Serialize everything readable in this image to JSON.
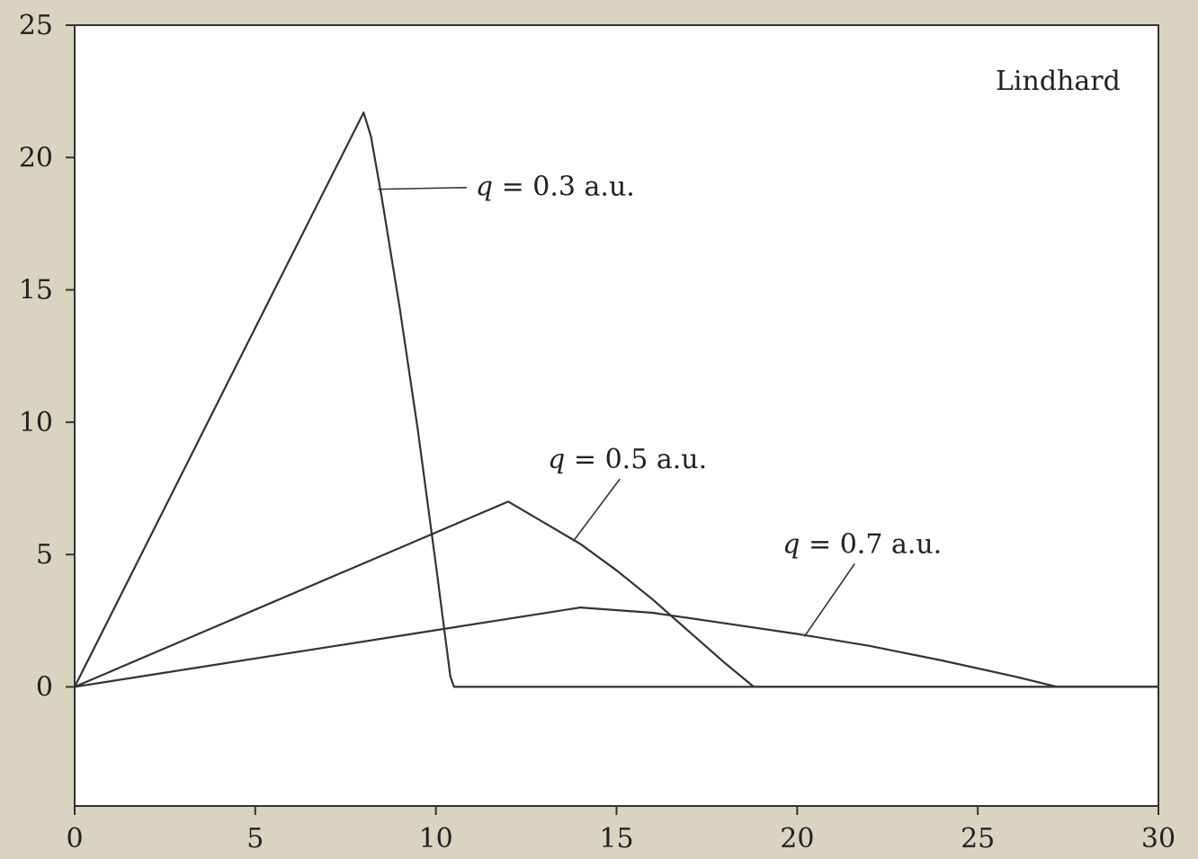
{
  "chart_data": {
    "type": "line",
    "title": "Lindhard",
    "xlabel": "",
    "ylabel": "",
    "xlim": [
      0,
      30
    ],
    "ylim": [
      -4.5,
      25
    ],
    "x_ticks": [
      0,
      5,
      10,
      15,
      20,
      25,
      30
    ],
    "y_ticks": [
      0,
      5,
      10,
      15,
      20,
      25
    ],
    "grid": false,
    "colors": {
      "background": "#d8d4c0",
      "plot": "#ffffff",
      "line": "#333333"
    },
    "series": [
      {
        "name": "q = 0.3 a.u.",
        "x": [
          0,
          8.0,
          8.2,
          8.5,
          9.0,
          9.5,
          10.0,
          10.4,
          10.5,
          30
        ],
        "y": [
          0,
          21.7,
          20.8,
          18.5,
          14.3,
          9.7,
          4.6,
          0.4,
          0,
          0
        ]
      },
      {
        "name": "q = 0.5 a.u.",
        "x": [
          0,
          12.0,
          13.0,
          14.0,
          15.0,
          16.0,
          17.0,
          18.0,
          18.8,
          30
        ],
        "y": [
          0,
          7.0,
          6.2,
          5.4,
          4.4,
          3.3,
          2.1,
          0.9,
          0,
          0
        ]
      },
      {
        "name": "q = 0.7 a.u.",
        "x": [
          0,
          14.0,
          16.0,
          18.0,
          20.0,
          22.0,
          24.0,
          26.0,
          27.2,
          30
        ],
        "y": [
          0,
          3.0,
          2.8,
          2.4,
          2.0,
          1.55,
          1.0,
          0.4,
          0,
          0
        ]
      }
    ],
    "annotations": [
      {
        "q_symbol": "q",
        "rest": " = 0.3 a.u.",
        "series": 0,
        "text_x": 11.1,
        "text_y": 18.9,
        "point_x": 8.4,
        "point_y": 18.8
      },
      {
        "q_symbol": "q",
        "rest": " = 0.5 a.u.",
        "series": 1,
        "text_x": 13.1,
        "text_y": 8.6,
        "point_x": 13.8,
        "point_y": 5.5
      },
      {
        "q_symbol": "q",
        "rest": " = 0.7 a.u.",
        "series": 2,
        "text_x": 19.6,
        "text_y": 5.4,
        "point_x": 20.2,
        "point_y": 1.9
      }
    ]
  }
}
